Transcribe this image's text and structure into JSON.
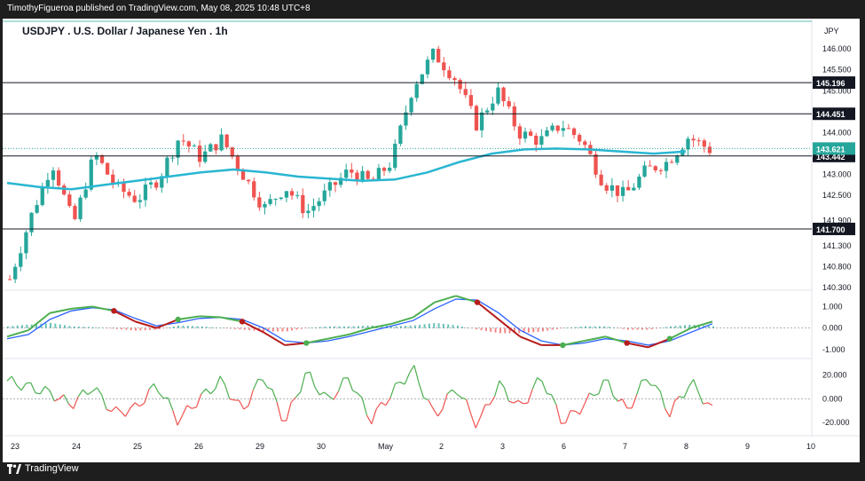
{
  "published_text": "TimothyFigueroa published on TradingView.com, May 08, 2025 10:48 UTC+8",
  "footer_brand": "TradingView",
  "chart_data": [
    {
      "type": "candlestick",
      "title": "USDJPY . U.S. Dollar / Japanese Yen . 1h",
      "currency": "JPY",
      "ylim": [
        140.3,
        146.3
      ],
      "y_ticks": [
        "146.000",
        "145.500",
        "145.000",
        "144.000",
        "143.000",
        "142.500",
        "141.900",
        "141.300",
        "140.800",
        "140.300"
      ],
      "x_ticks": [
        "23",
        "24",
        "25",
        "26",
        "29",
        "30",
        "May",
        "2",
        "3",
        "6",
        "7",
        "8",
        "9",
        "10"
      ],
      "horizontal_levels": [
        {
          "label": "145.196",
          "value": 145.196
        },
        {
          "label": "144.451",
          "value": 144.451
        },
        {
          "label": "143.442",
          "value": 143.442
        },
        {
          "label": "141.700",
          "value": 141.7
        }
      ],
      "last_price": {
        "label": "143.621",
        "value": 143.621,
        "color": "#26a69a"
      },
      "moving_average_color": "#29b6d2",
      "moving_average": [
        142.8,
        142.7,
        142.65,
        142.75,
        142.85,
        142.95,
        143.05,
        143.12,
        143.05,
        142.95,
        142.9,
        142.85,
        142.88,
        143.05,
        143.3,
        143.5,
        143.6,
        143.62,
        143.6,
        143.55,
        143.5,
        143.55
      ],
      "price_path": [
        140.5,
        142.0,
        143.3,
        141.8,
        143.5,
        142.7,
        142.4,
        142.9,
        143.9,
        143.4,
        143.85,
        143.0,
        142.2,
        142.7,
        142.1,
        142.6,
        143.1,
        142.8,
        143.3,
        145.1,
        145.9,
        145.3,
        144.2,
        145.0,
        144.0,
        143.8,
        144.2,
        143.8,
        142.8,
        142.5,
        143.1,
        143.3,
        143.9,
        143.6
      ],
      "up_color": "#26a69a",
      "down_color": "#ef5350"
    },
    {
      "type": "line",
      "name": "oscillator-1",
      "y_ticks": [
        "1.000",
        "0.000",
        "-1.000"
      ],
      "ylim": [
        -1.3,
        1.6
      ],
      "line_fast": [
        -0.4,
        -0.1,
        0.7,
        0.9,
        1.0,
        0.8,
        0.3,
        0.0,
        0.4,
        0.55,
        0.5,
        0.3,
        -0.2,
        -0.8,
        -0.7,
        -0.5,
        -0.3,
        0.0,
        0.2,
        0.5,
        1.2,
        1.5,
        1.2,
        0.4,
        -0.4,
        -0.8,
        -0.8,
        -0.6,
        -0.4,
        -0.7,
        -0.9,
        -0.5,
        0.0,
        0.3
      ],
      "line_slow": [
        -0.5,
        -0.3,
        0.4,
        0.8,
        0.95,
        0.85,
        0.45,
        0.1,
        0.25,
        0.45,
        0.5,
        0.4,
        0.0,
        -0.6,
        -0.7,
        -0.6,
        -0.4,
        -0.15,
        0.1,
        0.35,
        0.9,
        1.35,
        1.3,
        0.7,
        -0.1,
        -0.6,
        -0.8,
        -0.7,
        -0.5,
        -0.6,
        -0.8,
        -0.6,
        -0.2,
        0.2
      ]
    },
    {
      "type": "line",
      "name": "oscillator-2",
      "y_ticks": [
        "20.000",
        "0.000",
        "-20.000"
      ],
      "ylim": [
        -28,
        30
      ],
      "values": [
        15,
        10,
        5,
        -5,
        10,
        -12,
        -8,
        12,
        -18,
        0,
        15,
        -10,
        20,
        -20,
        22,
        -2,
        18,
        -18,
        5,
        25,
        -15,
        10,
        -22,
        12,
        -8,
        18,
        -20,
        -5,
        15,
        -10,
        20,
        -12,
        14,
        -10
      ]
    }
  ]
}
